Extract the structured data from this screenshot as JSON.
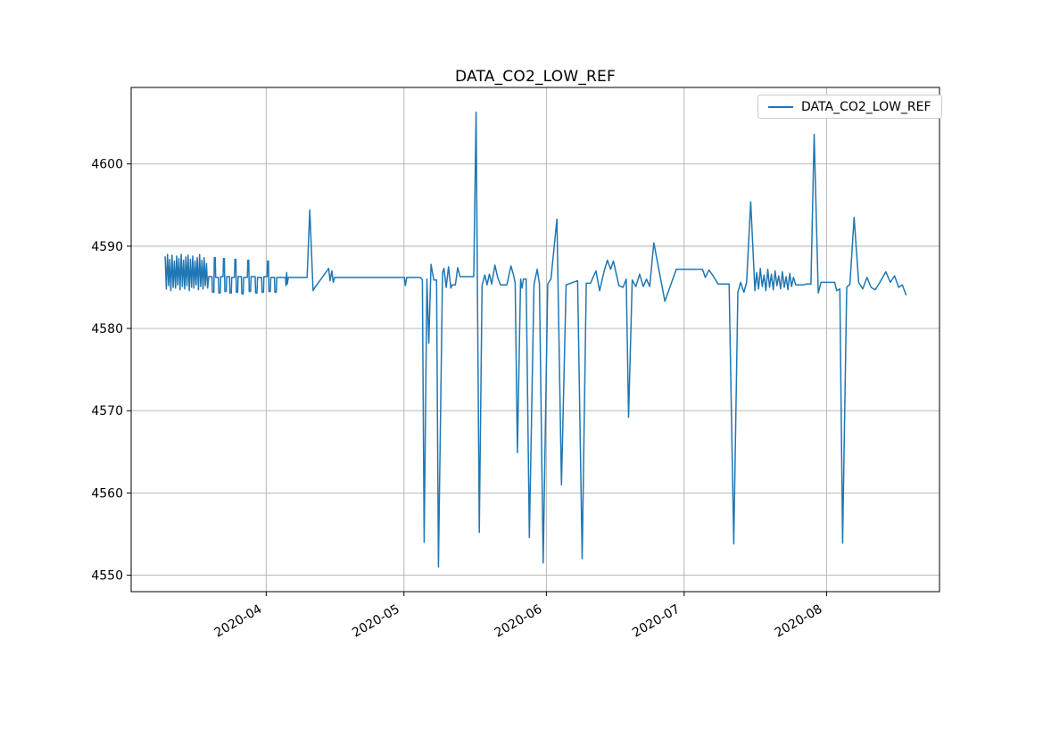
{
  "chart_data": {
    "type": "line",
    "title": "DATA_CO2_LOW_REF",
    "grid": true,
    "legend_position": "upper right",
    "line_color": "#1f77b4",
    "grid_color": "#b0b0b0",
    "x_axis": {
      "unit": "days since 2020-03-01",
      "lim": [
        1.6,
        177.6
      ],
      "ticks": [
        {
          "day": 31,
          "label": "2020-04"
        },
        {
          "day": 61,
          "label": "2020-05"
        },
        {
          "day": 92,
          "label": "2020-06"
        },
        {
          "day": 122,
          "label": "2020-07"
        },
        {
          "day": 153,
          "label": "2020-08"
        }
      ]
    },
    "y_axis": {
      "lim": [
        4548.0,
        4609.3
      ],
      "ticks": [
        4550,
        4560,
        4570,
        4580,
        4590,
        4600
      ]
    },
    "series": [
      {
        "name": "DATA_CO2_LOW_REF",
        "points": [
          [
            9.0,
            4588.7
          ],
          [
            9.25,
            4584.8
          ],
          [
            9.5,
            4589.0
          ],
          [
            9.75,
            4585.2
          ],
          [
            10.0,
            4588.4
          ],
          [
            10.25,
            4584.6
          ],
          [
            10.5,
            4588.9
          ],
          [
            10.75,
            4585.0
          ],
          [
            11.0,
            4588.2
          ],
          [
            11.25,
            4584.9
          ],
          [
            11.5,
            4588.8
          ],
          [
            11.75,
            4585.3
          ],
          [
            12.0,
            4588.5
          ],
          [
            12.25,
            4584.7
          ],
          [
            12.5,
            4589.0
          ],
          [
            12.75,
            4585.1
          ],
          [
            13.0,
            4588.3
          ],
          [
            13.25,
            4584.8
          ],
          [
            13.5,
            4588.7
          ],
          [
            13.75,
            4585.2
          ],
          [
            14.0,
            4588.9
          ],
          [
            14.25,
            4584.6
          ],
          [
            14.5,
            4588.4
          ],
          [
            14.75,
            4585.0
          ],
          [
            15.0,
            4588.8
          ],
          [
            15.25,
            4584.9
          ],
          [
            15.5,
            4588.2
          ],
          [
            15.75,
            4585.3
          ],
          [
            16.0,
            4588.6
          ],
          [
            16.25,
            4584.7
          ],
          [
            16.5,
            4589.0
          ],
          [
            16.75,
            4585.1
          ],
          [
            17.0,
            4588.3
          ],
          [
            17.25,
            4584.8
          ],
          [
            17.5,
            4588.6
          ],
          [
            17.75,
            4585.2
          ],
          [
            18.0,
            4587.9
          ],
          [
            18.25,
            4584.9
          ],
          [
            18.5,
            4586.3
          ],
          [
            19.2,
            4586.3
          ],
          [
            19.3,
            4584.4
          ],
          [
            19.6,
            4584.4
          ],
          [
            19.7,
            4588.6
          ],
          [
            19.9,
            4588.6
          ],
          [
            20.0,
            4586.2
          ],
          [
            20.6,
            4586.2
          ],
          [
            20.7,
            4584.3
          ],
          [
            21.0,
            4584.3
          ],
          [
            21.1,
            4586.3
          ],
          [
            21.6,
            4586.3
          ],
          [
            21.7,
            4588.5
          ],
          [
            21.9,
            4588.5
          ],
          [
            22.0,
            4584.5
          ],
          [
            22.3,
            4584.5
          ],
          [
            22.4,
            4586.3
          ],
          [
            23.0,
            4586.3
          ],
          [
            23.1,
            4584.3
          ],
          [
            23.4,
            4584.3
          ],
          [
            23.5,
            4586.2
          ],
          [
            24.1,
            4586.2
          ],
          [
            24.2,
            4588.4
          ],
          [
            24.4,
            4588.4
          ],
          [
            24.5,
            4584.4
          ],
          [
            24.8,
            4584.4
          ],
          [
            24.9,
            4586.3
          ],
          [
            25.6,
            4586.3
          ],
          [
            25.7,
            4584.2
          ],
          [
            26.0,
            4584.2
          ],
          [
            26.1,
            4586.2
          ],
          [
            26.9,
            4586.2
          ],
          [
            27.0,
            4588.3
          ],
          [
            27.2,
            4588.3
          ],
          [
            27.3,
            4584.5
          ],
          [
            27.6,
            4584.5
          ],
          [
            27.7,
            4586.3
          ],
          [
            28.6,
            4586.3
          ],
          [
            28.7,
            4584.3
          ],
          [
            29.0,
            4584.3
          ],
          [
            29.1,
            4586.2
          ],
          [
            30.0,
            4586.2
          ],
          [
            30.1,
            4584.4
          ],
          [
            30.4,
            4584.4
          ],
          [
            30.5,
            4586.3
          ],
          [
            31.2,
            4586.3
          ],
          [
            31.3,
            4588.2
          ],
          [
            31.5,
            4588.2
          ],
          [
            31.6,
            4584.5
          ],
          [
            31.9,
            4584.5
          ],
          [
            32.0,
            4586.2
          ],
          [
            32.8,
            4586.2
          ],
          [
            32.9,
            4584.4
          ],
          [
            33.2,
            4584.4
          ],
          [
            33.3,
            4586.2
          ],
          [
            35.2,
            4586.2
          ],
          [
            35.3,
            4585.2
          ],
          [
            35.45,
            4586.8
          ],
          [
            35.6,
            4585.4
          ],
          [
            35.8,
            4586.2
          ],
          [
            39.9,
            4586.2
          ],
          [
            40.5,
            4594.4
          ],
          [
            41.2,
            4584.6
          ],
          [
            41.5,
            4584.9
          ],
          [
            44.6,
            4587.3
          ],
          [
            44.9,
            4585.8
          ],
          [
            45.3,
            4587.0
          ],
          [
            45.6,
            4585.6
          ],
          [
            45.9,
            4586.2
          ],
          [
            61.1,
            4586.2
          ],
          [
            61.3,
            4585.2
          ],
          [
            61.6,
            4586.2
          ],
          [
            64.6,
            4586.2
          ],
          [
            65.0,
            4585.9
          ],
          [
            65.4,
            4554.0
          ],
          [
            66.0,
            4586.0
          ],
          [
            66.4,
            4578.2
          ],
          [
            66.9,
            4587.8
          ],
          [
            67.5,
            4585.9
          ],
          [
            68.1,
            4585.9
          ],
          [
            68.5,
            4551.0
          ],
          [
            69.4,
            4586.8
          ],
          [
            69.7,
            4587.3
          ],
          [
            70.2,
            4585.0
          ],
          [
            70.7,
            4587.5
          ],
          [
            71.2,
            4584.9
          ],
          [
            71.5,
            4585.3
          ],
          [
            72.2,
            4585.3
          ],
          [
            72.7,
            4587.4
          ],
          [
            73.2,
            4586.3
          ],
          [
            76.2,
            4586.3
          ],
          [
            76.7,
            4606.3
          ],
          [
            77.4,
            4555.2
          ],
          [
            78.0,
            4585.2
          ],
          [
            78.6,
            4586.5
          ],
          [
            79.1,
            4585.3
          ],
          [
            79.6,
            4586.6
          ],
          [
            80.1,
            4585.4
          ],
          [
            80.8,
            4587.7
          ],
          [
            81.4,
            4586.2
          ],
          [
            82.0,
            4585.3
          ],
          [
            83.4,
            4585.3
          ],
          [
            84.3,
            4587.6
          ],
          [
            84.9,
            4586.4
          ],
          [
            85.2,
            4585.5
          ],
          [
            85.7,
            4564.9
          ],
          [
            86.4,
            4586.0
          ],
          [
            86.7,
            4584.9
          ],
          [
            87.0,
            4586.0
          ],
          [
            87.6,
            4586.0
          ],
          [
            88.3,
            4554.6
          ],
          [
            89.3,
            4585.3
          ],
          [
            90.0,
            4587.2
          ],
          [
            90.5,
            4585.4
          ],
          [
            91.3,
            4551.5
          ],
          [
            92.3,
            4585.4
          ],
          [
            93.0,
            4586.0
          ],
          [
            94.3,
            4593.3
          ],
          [
            95.3,
            4561.0
          ],
          [
            96.3,
            4585.3
          ],
          [
            98.8,
            4585.8
          ],
          [
            99.8,
            4552.0
          ],
          [
            100.7,
            4585.5
          ],
          [
            101.6,
            4585.5
          ],
          [
            102.8,
            4587.0
          ],
          [
            103.6,
            4584.6
          ],
          [
            104.6,
            4587.0
          ],
          [
            105.3,
            4588.3
          ],
          [
            106.0,
            4587.2
          ],
          [
            106.6,
            4588.2
          ],
          [
            107.8,
            4585.2
          ],
          [
            108.7,
            4585.0
          ],
          [
            109.4,
            4586.0
          ],
          [
            109.9,
            4569.2
          ],
          [
            110.7,
            4585.9
          ],
          [
            111.5,
            4585.1
          ],
          [
            112.3,
            4586.6
          ],
          [
            113.1,
            4585.1
          ],
          [
            113.8,
            4586.0
          ],
          [
            114.5,
            4585.1
          ],
          [
            115.4,
            4590.4
          ],
          [
            117.8,
            4583.3
          ],
          [
            120.3,
            4587.2
          ],
          [
            126.0,
            4587.2
          ],
          [
            126.6,
            4586.2
          ],
          [
            127.4,
            4587.1
          ],
          [
            128.3,
            4586.4
          ],
          [
            129.4,
            4585.4
          ],
          [
            131.8,
            4585.4
          ],
          [
            132.8,
            4553.8
          ],
          [
            133.7,
            4584.4
          ],
          [
            134.3,
            4585.6
          ],
          [
            135.0,
            4584.4
          ],
          [
            135.6,
            4585.6
          ],
          [
            136.5,
            4595.4
          ],
          [
            137.4,
            4584.6
          ],
          [
            137.8,
            4586.8
          ],
          [
            138.2,
            4584.8
          ],
          [
            138.6,
            4587.3
          ],
          [
            139.0,
            4585.1
          ],
          [
            139.4,
            4586.5
          ],
          [
            139.8,
            4584.6
          ],
          [
            140.2,
            4587.2
          ],
          [
            140.6,
            4585.0
          ],
          [
            141.0,
            4586.6
          ],
          [
            141.4,
            4584.7
          ],
          [
            141.8,
            4587.0
          ],
          [
            142.2,
            4585.2
          ],
          [
            142.6,
            4586.4
          ],
          [
            143.0,
            4584.8
          ],
          [
            143.4,
            4586.9
          ],
          [
            143.8,
            4585.0
          ],
          [
            144.2,
            4586.3
          ],
          [
            144.6,
            4584.7
          ],
          [
            145.0,
            4586.7
          ],
          [
            145.4,
            4585.1
          ],
          [
            145.8,
            4586.2
          ],
          [
            146.3,
            4585.3
          ],
          [
            148.0,
            4585.3
          ],
          [
            148.6,
            4585.4
          ],
          [
            149.6,
            4585.4
          ],
          [
            150.3,
            4603.6
          ],
          [
            151.2,
            4584.3
          ],
          [
            151.8,
            4585.6
          ],
          [
            154.8,
            4585.6
          ],
          [
            155.2,
            4584.6
          ],
          [
            155.9,
            4584.8
          ],
          [
            156.5,
            4553.9
          ],
          [
            157.4,
            4585.0
          ],
          [
            158.1,
            4585.4
          ],
          [
            159.0,
            4593.5
          ],
          [
            160.0,
            4585.6
          ],
          [
            160.9,
            4584.8
          ],
          [
            161.8,
            4586.2
          ],
          [
            162.7,
            4585.0
          ],
          [
            163.6,
            4584.7
          ],
          [
            164.5,
            4585.5
          ],
          [
            165.9,
            4586.9
          ],
          [
            166.9,
            4585.6
          ],
          [
            167.8,
            4586.4
          ],
          [
            168.7,
            4585.0
          ],
          [
            169.5,
            4585.3
          ],
          [
            170.3,
            4584.1
          ]
        ]
      }
    ]
  }
}
